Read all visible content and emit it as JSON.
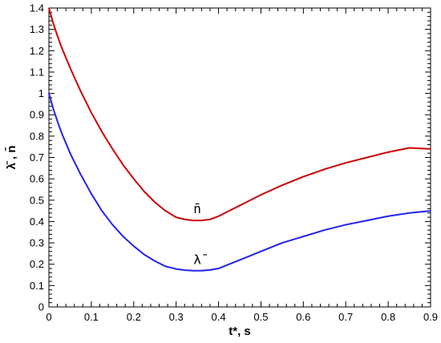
{
  "chart_data": {
    "type": "line",
    "xlabel": "t*, s",
    "ylabel": "λ̄ , n̄",
    "xlim": [
      0,
      0.9
    ],
    "ylim": [
      0,
      1.4
    ],
    "xticks": [
      0,
      0.1,
      0.2,
      0.3,
      0.4,
      0.5,
      0.6,
      0.7,
      0.8,
      0.9
    ],
    "yticks": [
      0,
      0.1,
      0.2,
      0.3,
      0.4,
      0.5,
      0.6,
      0.7,
      0.8,
      0.9,
      1,
      1.1,
      1.2,
      1.3,
      1.4
    ],
    "grid": false,
    "series": [
      {
        "name": "n̄",
        "color": "#cc0000",
        "label_at": [
          0.35,
          0.44
        ],
        "x": [
          0,
          0.01,
          0.02,
          0.03,
          0.05,
          0.075,
          0.1,
          0.125,
          0.15,
          0.175,
          0.2,
          0.225,
          0.25,
          0.275,
          0.3,
          0.32,
          0.34,
          0.36,
          0.38,
          0.4,
          0.425,
          0.45,
          0.5,
          0.55,
          0.6,
          0.65,
          0.7,
          0.75,
          0.8,
          0.85,
          0.9
        ],
        "y": [
          1.4,
          1.33,
          1.27,
          1.215,
          1.12,
          1.01,
          0.91,
          0.82,
          0.74,
          0.665,
          0.6,
          0.54,
          0.49,
          0.45,
          0.42,
          0.41,
          0.405,
          0.405,
          0.41,
          0.425,
          0.45,
          0.475,
          0.525,
          0.57,
          0.61,
          0.645,
          0.675,
          0.7,
          0.725,
          0.745,
          0.74
        ]
      },
      {
        "name": "λ̄",
        "color": "#2222ee",
        "label_at": [
          0.35,
          0.2
        ],
        "x": [
          0,
          0.01,
          0.02,
          0.03,
          0.05,
          0.075,
          0.1,
          0.125,
          0.15,
          0.175,
          0.2,
          0.225,
          0.25,
          0.275,
          0.3,
          0.32,
          0.34,
          0.36,
          0.38,
          0.4,
          0.425,
          0.45,
          0.5,
          0.55,
          0.6,
          0.65,
          0.7,
          0.75,
          0.8,
          0.85,
          0.9
        ],
        "y": [
          1.0,
          0.93,
          0.87,
          0.815,
          0.72,
          0.62,
          0.53,
          0.45,
          0.385,
          0.33,
          0.285,
          0.245,
          0.215,
          0.19,
          0.178,
          0.172,
          0.17,
          0.17,
          0.173,
          0.18,
          0.2,
          0.22,
          0.26,
          0.3,
          0.33,
          0.36,
          0.385,
          0.405,
          0.425,
          0.44,
          0.45
        ]
      }
    ]
  }
}
